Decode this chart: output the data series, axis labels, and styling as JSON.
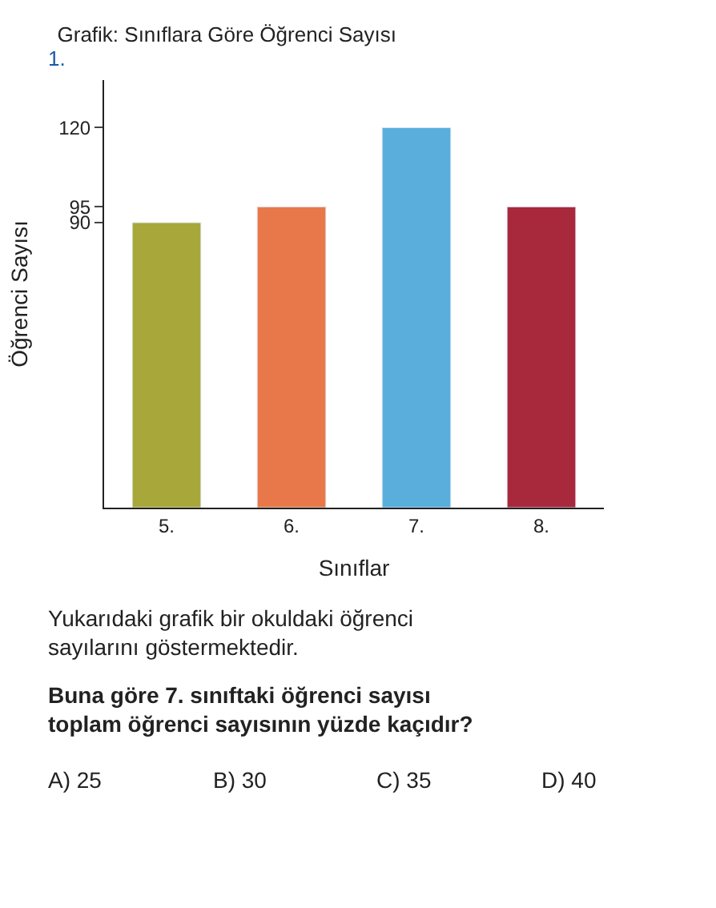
{
  "chart_data": {
    "type": "bar",
    "title": "Grafik: Sınıflara Göre Öğrenci Sayısı",
    "xlabel": "Sınıflar",
    "ylabel": "Öğrenci Sayısı",
    "categories": [
      "5.",
      "6.",
      "7.",
      "8."
    ],
    "values": [
      90,
      95,
      120,
      95
    ],
    "colors": [
      "#a8a83a",
      "#e8784a",
      "#5aaedc",
      "#a8283c"
    ],
    "ylim": [
      0,
      135
    ],
    "yticks": [
      90,
      95,
      120
    ],
    "annotations": [
      "1.",
      "Yukarıdaki grafik bir okuldaki öğrenci sayılarını göstermektedir.",
      "Buna göre 7. sınıftaki öğrenci sayısı toplam öğrenci sayısının yüzde kaçıdır?",
      "A) 25",
      "B) 30",
      "C) 35",
      "D) 40"
    ]
  }
}
